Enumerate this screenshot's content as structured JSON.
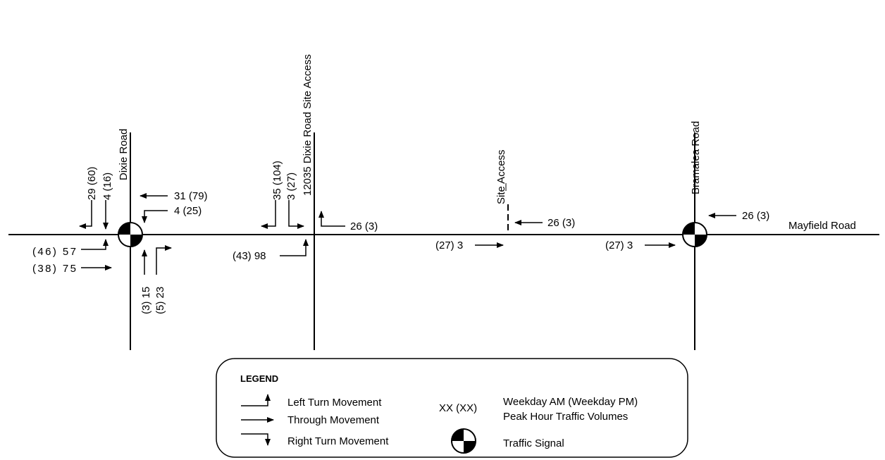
{
  "roads": {
    "mayfield": "Mayfield Road",
    "dixie": "Dixie Road",
    "site_access_12035": "12035 Dixie Road Site Access",
    "site_access": "Site Access",
    "bramalea": "Bramalea Road"
  },
  "volumes": {
    "dixie_sb_left": "29 (60)",
    "dixie_sb_right": "4 (16)",
    "dixie_wb_through": "31 (79)",
    "dixie_wb_left": "4 (25)",
    "dixie_eb_left": "(46) 57",
    "dixie_eb_through": "(38) 75",
    "dixie_nb_through": "(3) 15",
    "dixie_nb_right": "(5) 23",
    "sa1_sb_right": "35 (104)",
    "sa1_sb_left": "3 (27)",
    "sa1_wb_right": "26 (3)",
    "sa1_eb": "(43) 98",
    "sa2_wb": "26 (3)",
    "sa2_eb": "(27) 3",
    "bram_wb": "26 (3)",
    "bram_eb": "(27) 3"
  },
  "legend": {
    "title": "LEGEND",
    "left_turn": "Left Turn Movement",
    "through": "Through Movement",
    "right_turn": "Right Turn Movement",
    "xx": "XX (XX)",
    "volumes_line1": "Weekday AM (Weekday PM)",
    "volumes_line2": "Peak Hour Traffic Volumes",
    "signal": "Traffic Signal"
  }
}
